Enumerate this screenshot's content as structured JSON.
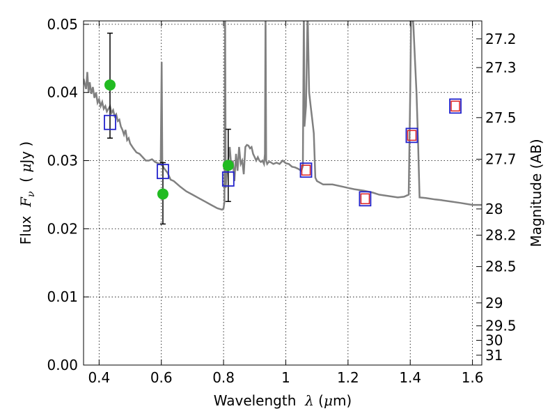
{
  "chart_data": {
    "type": "scatter",
    "xlabel": {
      "pre": "Wavelength  ",
      "sym": "λ",
      "post": " (",
      "mu": "μ",
      "unit": "m)"
    },
    "ylabel": {
      "pre": "Flux  ",
      "sym": "F",
      "sub": "ν",
      "post": "  ( ",
      "mu": "μ",
      "unit": "Jy )"
    },
    "y2label": "Magnitude (AB)",
    "xlim": [
      0.35,
      1.63
    ],
    "ylim": [
      0.0,
      0.0505
    ],
    "grid": true,
    "x_ticks": [
      0.4,
      0.6,
      0.8,
      1.0,
      1.2,
      1.4,
      1.6
    ],
    "x_tick_labels": [
      "0.4",
      "0.6",
      "0.8",
      "1",
      "1.2",
      "1.4",
      "1.6"
    ],
    "y_ticks": [
      0.0,
      0.01,
      0.02,
      0.03,
      0.04,
      0.05
    ],
    "y_tick_labels": [
      "0.00",
      "0.01",
      "0.02",
      "0.03",
      "0.04",
      "0.05"
    ],
    "mag_ticks": [
      "27.2",
      "27.3",
      "27.5",
      "27.7",
      "28",
      "28.2",
      "28.5",
      "29",
      "29.5",
      "30",
      "31"
    ],
    "colors": {
      "spectrum": "#808080",
      "observed": "#22bb22",
      "model_outer": "#2222cc",
      "model_inner": "#dd2222",
      "errorbar": "#000000"
    },
    "series": [
      {
        "kind": "line",
        "x": [
          0.35,
          0.358,
          0.362,
          0.366,
          0.37,
          0.375,
          0.38,
          0.385,
          0.39,
          0.395,
          0.4,
          0.405,
          0.41,
          0.415,
          0.42,
          0.425,
          0.43,
          0.435,
          0.44,
          0.445,
          0.45,
          0.455,
          0.46,
          0.465,
          0.47,
          0.475,
          0.48,
          0.485,
          0.49,
          0.495,
          0.5,
          0.51,
          0.52,
          0.53,
          0.54,
          0.55,
          0.56,
          0.57,
          0.58,
          0.59,
          0.598,
          0.601,
          0.603,
          0.605,
          0.607,
          0.61,
          0.62,
          0.63,
          0.64,
          0.66,
          0.68,
          0.7,
          0.72,
          0.74,
          0.76,
          0.78,
          0.795,
          0.8,
          0.803,
          0.805,
          0.807,
          0.81,
          0.815,
          0.82,
          0.825,
          0.83,
          0.835,
          0.84,
          0.845,
          0.85,
          0.855,
          0.86,
          0.865,
          0.87,
          0.875,
          0.88,
          0.885,
          0.89,
          0.895,
          0.9,
          0.905,
          0.91,
          0.915,
          0.92,
          0.925,
          0.93,
          0.933,
          0.935,
          0.937,
          0.94,
          0.945,
          0.95,
          0.96,
          0.97,
          0.98,
          0.99,
          1.0,
          1.01,
          1.02,
          1.03,
          1.04,
          1.05,
          1.055,
          1.058,
          1.06,
          1.065,
          1.07,
          1.075,
          1.08,
          1.085,
          1.09,
          1.095,
          1.1,
          1.12,
          1.15,
          1.18,
          1.2,
          1.22,
          1.25,
          1.28,
          1.3,
          1.33,
          1.36,
          1.38,
          1.395,
          1.4,
          1.403,
          1.405,
          1.41,
          1.415,
          1.42,
          1.425,
          1.43,
          1.45,
          1.48,
          1.5,
          1.53,
          1.56,
          1.6,
          1.63
        ],
        "y": [
          0.042,
          0.0405,
          0.043,
          0.04,
          0.0415,
          0.0398,
          0.0408,
          0.0392,
          0.04,
          0.0385,
          0.039,
          0.038,
          0.0386,
          0.0376,
          0.038,
          0.0372,
          0.0376,
          0.038,
          0.037,
          0.0374,
          0.0365,
          0.0368,
          0.0358,
          0.036,
          0.035,
          0.0345,
          0.0338,
          0.0345,
          0.033,
          0.0333,
          0.0325,
          0.0318,
          0.0312,
          0.031,
          0.0305,
          0.03,
          0.03,
          0.0302,
          0.0298,
          0.0296,
          0.0295,
          0.0445,
          0.03,
          0.0292,
          0.029,
          0.0288,
          0.0282,
          0.0272,
          0.027,
          0.0262,
          0.0255,
          0.025,
          0.0245,
          0.024,
          0.0235,
          0.023,
          0.0228,
          0.023,
          0.024,
          0.052,
          0.026,
          0.028,
          0.03,
          0.032,
          0.029,
          0.03,
          0.027,
          0.031,
          0.0285,
          0.032,
          0.0295,
          0.03,
          0.028,
          0.032,
          0.0323,
          0.0322,
          0.0318,
          0.032,
          0.031,
          0.0305,
          0.03,
          0.0305,
          0.03,
          0.0298,
          0.03,
          0.0295,
          0.031,
          0.052,
          0.03,
          0.0295,
          0.0298,
          0.0298,
          0.0295,
          0.0297,
          0.0295,
          0.03,
          0.0296,
          0.0295,
          0.0291,
          0.029,
          0.0288,
          0.0285,
          0.0292,
          0.052,
          0.035,
          0.038,
          0.052,
          0.04,
          0.038,
          0.036,
          0.034,
          0.0275,
          0.027,
          0.0265,
          0.0265,
          0.0262,
          0.026,
          0.0258,
          0.0256,
          0.0253,
          0.025,
          0.0248,
          0.0246,
          0.0247,
          0.025,
          0.04,
          0.052,
          0.052,
          0.05,
          0.045,
          0.04,
          0.033,
          0.0246,
          0.0245,
          0.0243,
          0.0242,
          0.024,
          0.0238,
          0.0235,
          0.0235
        ]
      },
      {
        "kind": "observed",
        "x": [
          0.435,
          0.605,
          0.815
        ],
        "y": [
          0.0411,
          0.0251,
          0.0293
        ],
        "yerr_lo": [
          0.0333,
          0.0207,
          0.024
        ],
        "yerr_hi": [
          0.0487,
          0.0297,
          0.0346
        ]
      },
      {
        "kind": "model_squares",
        "x": [
          0.435,
          0.605,
          0.815,
          1.065,
          1.255,
          1.405,
          1.545
        ],
        "y": [
          0.0356,
          0.0284,
          0.0273,
          0.0286,
          0.0244,
          0.0337,
          0.038
        ],
        "inner_red": [
          false,
          false,
          false,
          true,
          true,
          true,
          true
        ]
      }
    ]
  }
}
